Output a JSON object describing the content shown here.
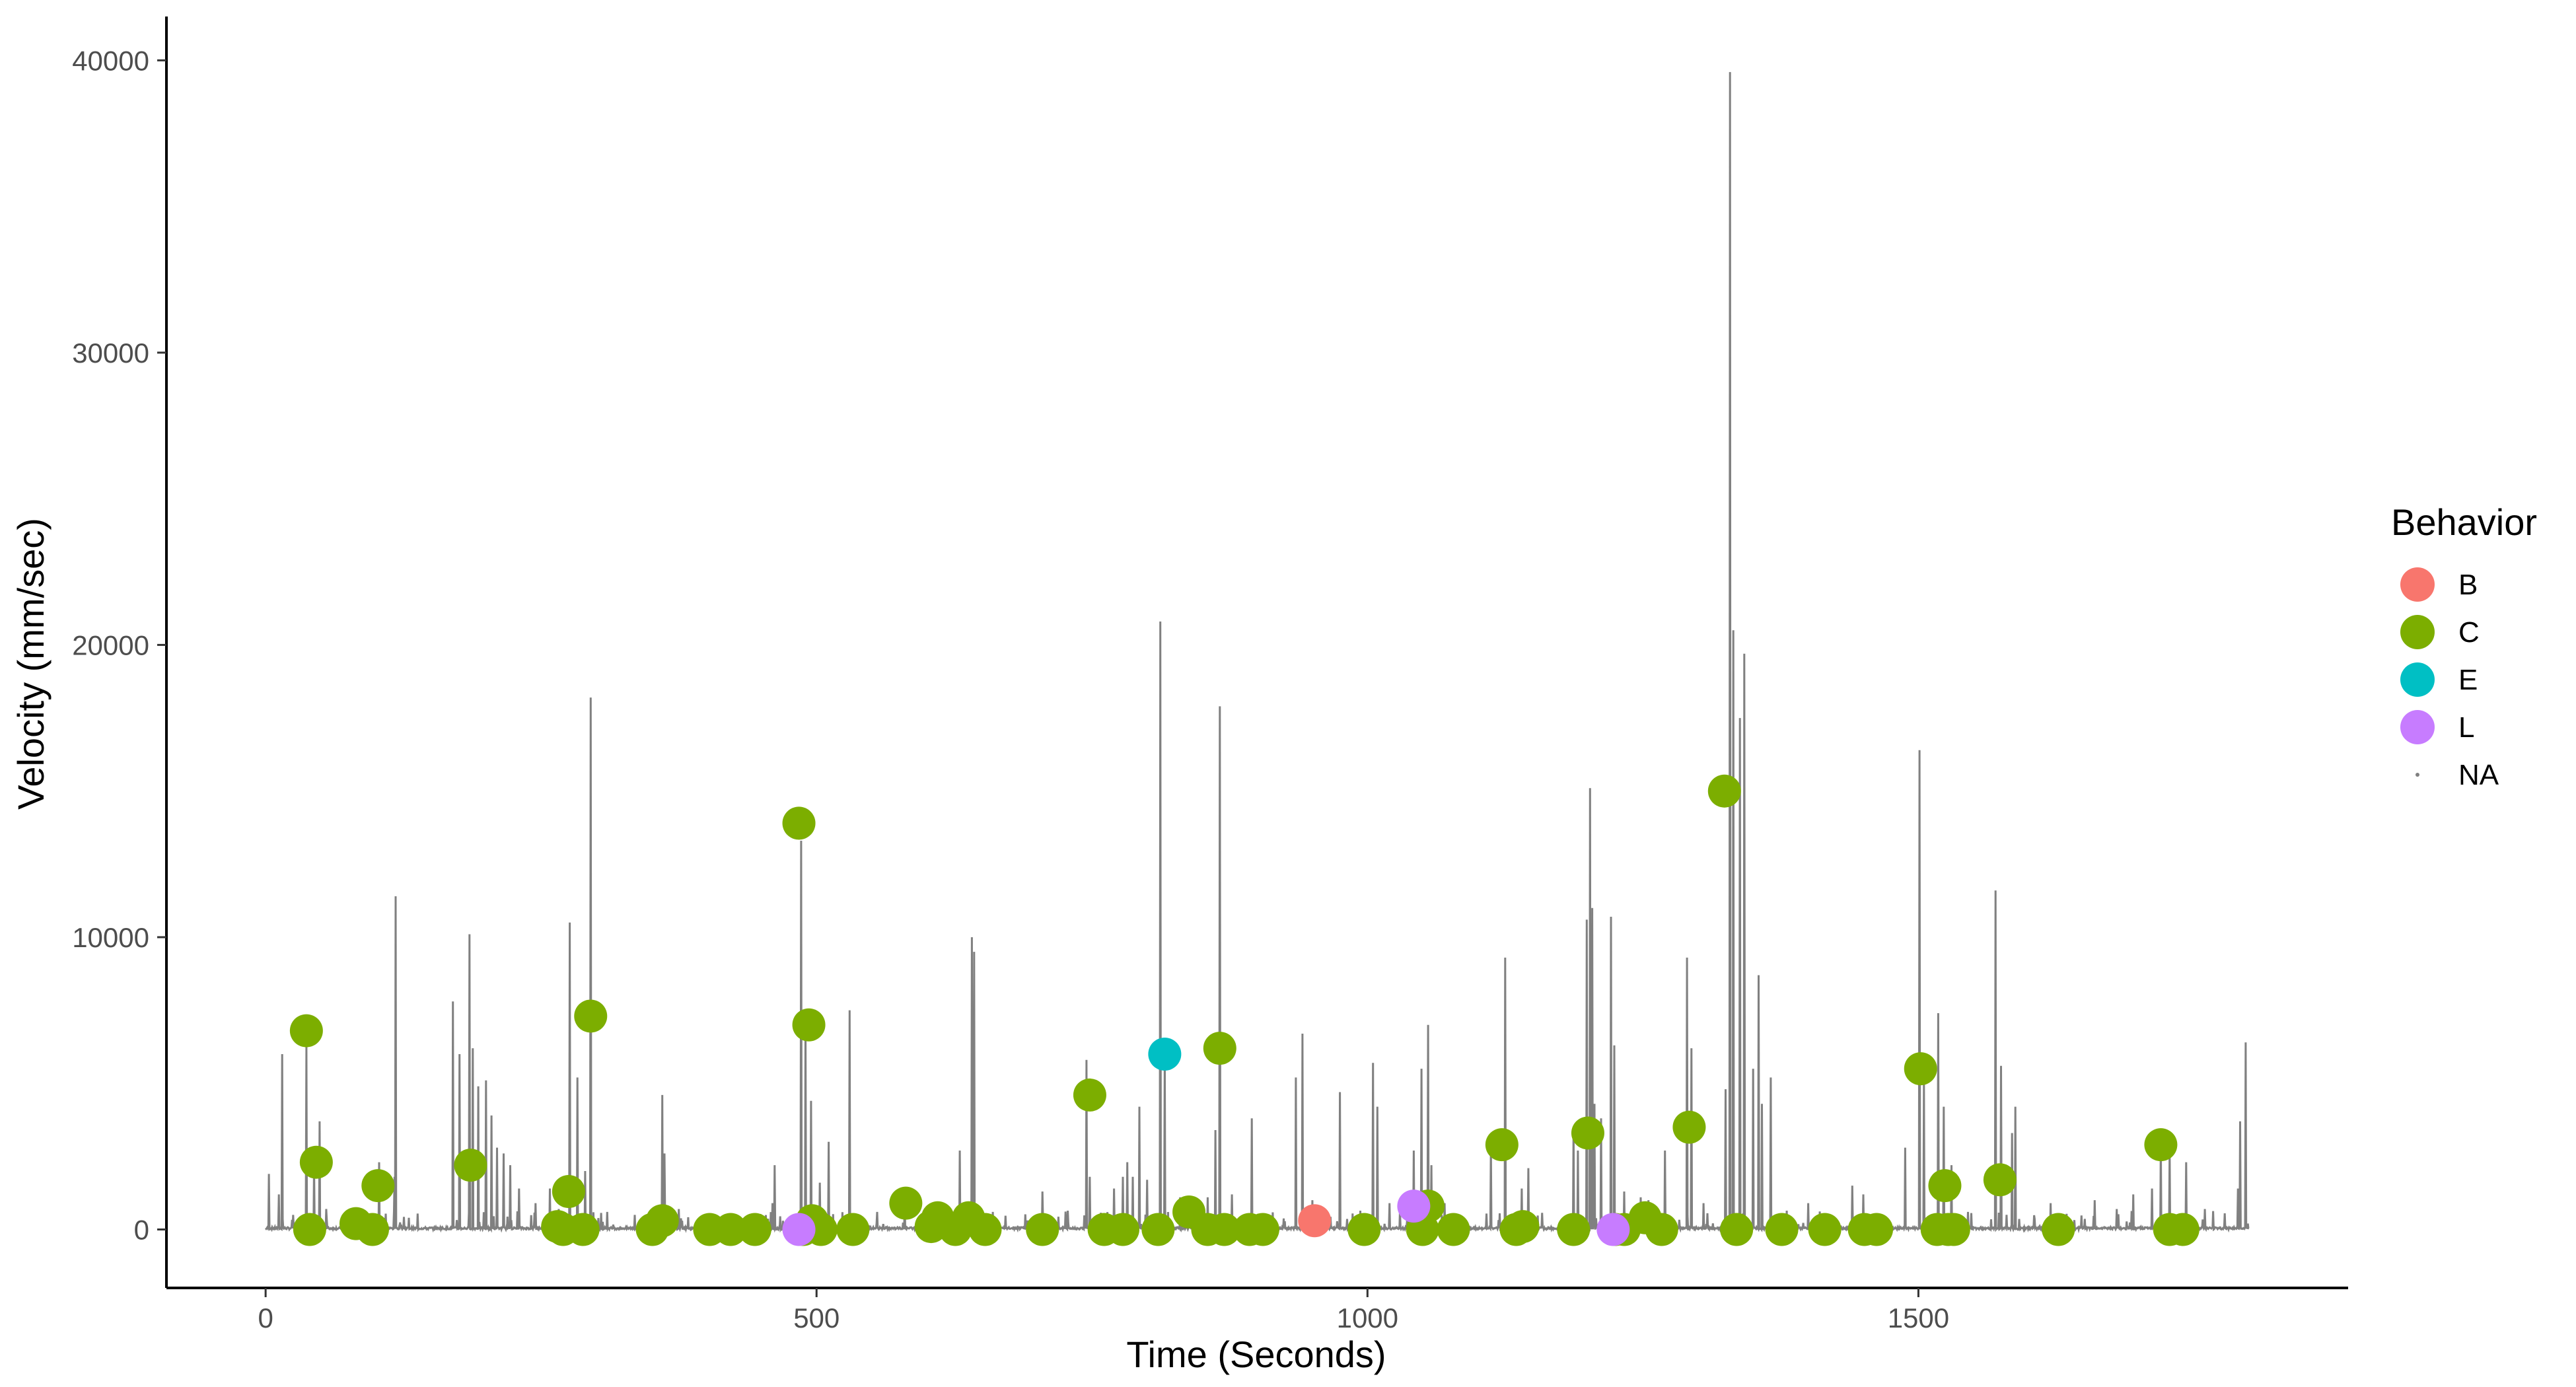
{
  "chart_data": {
    "type": "line",
    "title": "",
    "xlabel": "Time (Seconds)",
    "ylabel": "Velocity (mm/sec)",
    "xlim": [
      -90,
      1890
    ],
    "ylim": [
      -2000,
      41500
    ],
    "x_ticks": [
      0,
      500,
      1000,
      1500
    ],
    "y_ticks": [
      0,
      10000,
      20000,
      30000,
      40000
    ],
    "x_tick_labels": [
      "0",
      "500",
      "1000",
      "1500"
    ],
    "y_tick_labels": [
      "0",
      "10000",
      "20000",
      "30000",
      "40000"
    ],
    "grid": false,
    "line_series": {
      "name": "Velocity",
      "color": "#808080",
      "x_range": [
        0,
        1800
      ],
      "baseline": 80,
      "spikes": [
        [
          3,
          1900
        ],
        [
          12,
          1200
        ],
        [
          15,
          6000
        ],
        [
          25,
          500
        ],
        [
          37,
          6300
        ],
        [
          44,
          2200
        ],
        [
          49,
          3700
        ],
        [
          55,
          700
        ],
        [
          70,
          500
        ],
        [
          88,
          700
        ],
        [
          103,
          2300
        ],
        [
          117,
          1800
        ],
        [
          118,
          11400
        ],
        [
          130,
          400
        ],
        [
          170,
          7800
        ],
        [
          176,
          6000
        ],
        [
          185,
          10100
        ],
        [
          188,
          6200
        ],
        [
          193,
          4900
        ],
        [
          200,
          5100
        ],
        [
          205,
          3900
        ],
        [
          210,
          2800
        ],
        [
          216,
          2600
        ],
        [
          222,
          2200
        ],
        [
          230,
          1400
        ],
        [
          245,
          900
        ],
        [
          258,
          1400
        ],
        [
          266,
          700
        ],
        [
          276,
          10500
        ],
        [
          283,
          5200
        ],
        [
          290,
          2000
        ],
        [
          295,
          18200
        ],
        [
          310,
          600
        ],
        [
          335,
          500
        ],
        [
          360,
          4600
        ],
        [
          362,
          2600
        ],
        [
          375,
          700
        ],
        [
          420,
          500
        ],
        [
          460,
          900
        ],
        [
          462,
          2200
        ],
        [
          486,
          13300
        ],
        [
          490,
          7200
        ],
        [
          495,
          4400
        ],
        [
          503,
          1600
        ],
        [
          511,
          3000
        ],
        [
          530,
          7500
        ],
        [
          555,
          600
        ],
        [
          580,
          900
        ],
        [
          598,
          700
        ],
        [
          630,
          2700
        ],
        [
          641,
          10000
        ],
        [
          643,
          9500
        ],
        [
          660,
          600
        ],
        [
          705,
          1300
        ],
        [
          745,
          5800
        ],
        [
          748,
          1800
        ],
        [
          770,
          1400
        ],
        [
          778,
          1800
        ],
        [
          782,
          2300
        ],
        [
          787,
          1800
        ],
        [
          793,
          4200
        ],
        [
          800,
          1700
        ],
        [
          812,
          20800
        ],
        [
          816,
          6000
        ],
        [
          830,
          1100
        ],
        [
          855,
          1100
        ],
        [
          862,
          3400
        ],
        [
          866,
          17900
        ],
        [
          877,
          1200
        ],
        [
          895,
          3800
        ],
        [
          935,
          5200
        ],
        [
          941,
          6700
        ],
        [
          950,
          1000
        ],
        [
          975,
          4700
        ],
        [
          1005,
          5700
        ],
        [
          1009,
          4200
        ],
        [
          1020,
          900
        ],
        [
          1042,
          2700
        ],
        [
          1049,
          5500
        ],
        [
          1055,
          7000
        ],
        [
          1058,
          2200
        ],
        [
          1070,
          900
        ],
        [
          1112,
          2800
        ],
        [
          1125,
          9300
        ],
        [
          1140,
          1400
        ],
        [
          1146,
          2100
        ],
        [
          1187,
          3500
        ],
        [
          1191,
          2700
        ],
        [
          1199,
          10600
        ],
        [
          1202,
          15100
        ],
        [
          1204,
          11000
        ],
        [
          1206,
          4300
        ],
        [
          1212,
          3800
        ],
        [
          1221,
          10700
        ],
        [
          1224,
          6300
        ],
        [
          1233,
          1300
        ],
        [
          1248,
          1100
        ],
        [
          1255,
          1000
        ],
        [
          1270,
          2700
        ],
        [
          1290,
          9300
        ],
        [
          1294,
          6200
        ],
        [
          1305,
          900
        ],
        [
          1325,
          4800
        ],
        [
          1329,
          39600
        ],
        [
          1332,
          20500
        ],
        [
          1338,
          17500
        ],
        [
          1342,
          19700
        ],
        [
          1350,
          5500
        ],
        [
          1355,
          8700
        ],
        [
          1358,
          4300
        ],
        [
          1366,
          5200
        ],
        [
          1400,
          900
        ],
        [
          1440,
          1500
        ],
        [
          1450,
          1200
        ],
        [
          1488,
          2800
        ],
        [
          1501,
          16400
        ],
        [
          1505,
          5100
        ],
        [
          1518,
          7400
        ],
        [
          1523,
          4200
        ],
        [
          1530,
          2200
        ],
        [
          1545,
          600
        ],
        [
          1570,
          11600
        ],
        [
          1575,
          5600
        ],
        [
          1585,
          3300
        ],
        [
          1588,
          4200
        ],
        [
          1620,
          900
        ],
        [
          1660,
          1000
        ],
        [
          1680,
          700
        ],
        [
          1695,
          1200
        ],
        [
          1712,
          1400
        ],
        [
          1720,
          3000
        ],
        [
          1728,
          2700
        ],
        [
          1743,
          2300
        ],
        [
          1760,
          700
        ],
        [
          1790,
          1400
        ],
        [
          1792,
          3700
        ],
        [
          1797,
          6400
        ]
      ]
    },
    "legend": {
      "title": "Behavior",
      "position": "right",
      "entries": [
        {
          "label": "B",
          "color": "#F8766D",
          "kind": "point"
        },
        {
          "label": "C",
          "color": "#7CAE00",
          "kind": "point"
        },
        {
          "label": "E",
          "color": "#00BFC4",
          "kind": "point"
        },
        {
          "label": "L",
          "color": "#C77CFF",
          "kind": "point"
        },
        {
          "label": "NA",
          "color": "#808080",
          "kind": "dot"
        }
      ]
    },
    "series": [
      {
        "name": "B",
        "color": "#F8766D",
        "points": [
          [
            952,
            300
          ]
        ]
      },
      {
        "name": "C",
        "color": "#7CAE00",
        "points": [
          [
            37,
            6800
          ],
          [
            40,
            0
          ],
          [
            46,
            2300
          ],
          [
            82,
            200
          ],
          [
            97,
            0
          ],
          [
            102,
            1500
          ],
          [
            186,
            2200
          ],
          [
            265,
            100
          ],
          [
            270,
            0
          ],
          [
            275,
            1300
          ],
          [
            288,
            0
          ],
          [
            295,
            7300
          ],
          [
            351,
            0
          ],
          [
            360,
            300
          ],
          [
            403,
            0
          ],
          [
            422,
            0
          ],
          [
            444,
            0
          ],
          [
            484,
            13900
          ],
          [
            488,
            0
          ],
          [
            493,
            7000
          ],
          [
            496,
            300
          ],
          [
            504,
            0
          ],
          [
            533,
            0
          ],
          [
            581,
            900
          ],
          [
            604,
            100
          ],
          [
            610,
            400
          ],
          [
            626,
            0
          ],
          [
            638,
            400
          ],
          [
            653,
            0
          ],
          [
            705,
            0
          ],
          [
            748,
            4600
          ],
          [
            761,
            0
          ],
          [
            778,
            0
          ],
          [
            810,
            0
          ],
          [
            838,
            600
          ],
          [
            855,
            0
          ],
          [
            866,
            6200
          ],
          [
            870,
            0
          ],
          [
            893,
            0
          ],
          [
            905,
            0
          ],
          [
            997,
            0
          ],
          [
            1055,
            800
          ],
          [
            1050,
            0
          ],
          [
            1078,
            0
          ],
          [
            1122,
            2900
          ],
          [
            1135,
            0
          ],
          [
            1141,
            100
          ],
          [
            1187,
            0
          ],
          [
            1200,
            3300
          ],
          [
            1225,
            0
          ],
          [
            1233,
            0
          ],
          [
            1252,
            400
          ],
          [
            1267,
            0
          ],
          [
            1292,
            3500
          ],
          [
            1324,
            15000
          ],
          [
            1335,
            0
          ],
          [
            1376,
            0
          ],
          [
            1415,
            0
          ],
          [
            1451,
            0
          ],
          [
            1462,
            0
          ],
          [
            1502,
            5500
          ],
          [
            1517,
            0
          ],
          [
            1524,
            1500
          ],
          [
            1527,
            0
          ],
          [
            1532,
            0
          ],
          [
            1574,
            1700
          ],
          [
            1627,
            0
          ],
          [
            1720,
            2900
          ],
          [
            1728,
            0
          ],
          [
            1740,
            0
          ]
        ]
      },
      {
        "name": "E",
        "color": "#00BFC4",
        "points": [
          [
            816,
            6000
          ]
        ]
      },
      {
        "name": "L",
        "color": "#C77CFF",
        "points": [
          [
            484,
            0
          ],
          [
            1042,
            800
          ],
          [
            1223,
            0
          ]
        ]
      }
    ]
  }
}
